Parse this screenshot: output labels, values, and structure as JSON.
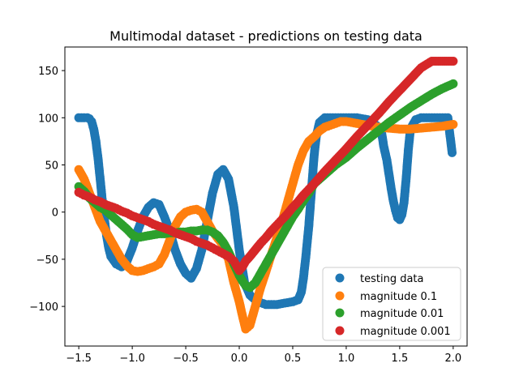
{
  "chart_data": {
    "type": "scatter",
    "title": "Multimodal dataset - predictions on testing data",
    "xlabel": "",
    "ylabel": "",
    "xlim": [
      -1.63,
      2.13
    ],
    "ylim": [
      -142,
      175
    ],
    "xticks": [
      -1.5,
      -1.0,
      -0.5,
      0.0,
      0.5,
      1.0,
      1.5,
      2.0
    ],
    "xtick_labels": [
      "−1.5",
      "−1.0",
      "−0.5",
      "0.0",
      "0.5",
      "1.0",
      "1.5",
      "2.0"
    ],
    "yticks": [
      -100,
      -50,
      0,
      50,
      100,
      150
    ],
    "ytick_labels": [
      "−100",
      "−50",
      "0",
      "50",
      "100",
      "150"
    ],
    "grid": false,
    "legend_position": "lower-right",
    "series": [
      {
        "name": "testing data",
        "color": "#1f77b4",
        "x": [
          -1.5,
          -1.45,
          -1.42,
          -1.4,
          -1.38,
          -1.36,
          -1.34,
          -1.32,
          -1.3,
          -1.28,
          -1.26,
          -1.24,
          -1.22,
          -1.2,
          -1.15,
          -1.1,
          -1.05,
          -1.0,
          -0.95,
          -0.9,
          -0.85,
          -0.8,
          -0.75,
          -0.7,
          -0.65,
          -0.6,
          -0.55,
          -0.5,
          -0.45,
          -0.4,
          -0.35,
          -0.3,
          -0.25,
          -0.2,
          -0.15,
          -0.1,
          -0.05,
          0.0,
          0.05,
          0.1,
          0.15,
          0.2,
          0.25,
          0.3,
          0.35,
          0.4,
          0.45,
          0.5,
          0.55,
          0.58,
          0.6,
          0.62,
          0.65,
          0.68,
          0.7,
          0.72,
          0.75,
          0.8,
          0.85,
          0.9,
          0.95,
          1.0,
          1.05,
          1.1,
          1.15,
          1.2,
          1.25,
          1.3,
          1.33,
          1.35,
          1.38,
          1.4,
          1.42,
          1.44,
          1.46,
          1.48,
          1.5,
          1.52,
          1.54,
          1.56,
          1.58,
          1.6,
          1.65,
          1.7,
          1.75,
          1.8,
          1.85,
          1.9,
          1.95,
          1.99
        ],
        "y": [
          100,
          100,
          100,
          99,
          96,
          88,
          75,
          57,
          35,
          12,
          -8,
          -25,
          -38,
          -47,
          -55,
          -58,
          -52,
          -38,
          -20,
          -5,
          5,
          10,
          8,
          -5,
          -20,
          -40,
          -55,
          -65,
          -70,
          -60,
          -40,
          -10,
          20,
          40,
          45,
          35,
          5,
          -40,
          -75,
          -88,
          -93,
          -96,
          -98,
          -98,
          -98,
          -97,
          -96,
          -95,
          -93,
          -85,
          -70,
          -50,
          -15,
          30,
          60,
          80,
          95,
          100,
          100,
          100,
          100,
          100,
          100,
          100,
          99,
          98,
          95,
          90,
          85,
          70,
          55,
          40,
          25,
          12,
          2,
          -6,
          -8,
          -3,
          10,
          35,
          65,
          88,
          98,
          100,
          100,
          100,
          100,
          100,
          100,
          63
        ]
      },
      {
        "name": "magnitude 0.1",
        "color": "#ff7f0e",
        "x": [
          -1.5,
          -1.45,
          -1.4,
          -1.35,
          -1.3,
          -1.25,
          -1.2,
          -1.15,
          -1.1,
          -1.05,
          -1.0,
          -0.95,
          -0.9,
          -0.85,
          -0.8,
          -0.75,
          -0.7,
          -0.65,
          -0.6,
          -0.55,
          -0.5,
          -0.45,
          -0.4,
          -0.35,
          -0.3,
          -0.25,
          -0.2,
          -0.15,
          -0.1,
          -0.05,
          0.0,
          0.03,
          0.06,
          0.1,
          0.15,
          0.2,
          0.25,
          0.3,
          0.35,
          0.4,
          0.45,
          0.5,
          0.55,
          0.6,
          0.65,
          0.7,
          0.75,
          0.8,
          0.85,
          0.9,
          0.95,
          1.0,
          1.05,
          1.1,
          1.15,
          1.2,
          1.3,
          1.4,
          1.5,
          1.6,
          1.7,
          1.8,
          1.9,
          2.0
        ],
        "y": [
          45,
          35,
          20,
          5,
          -10,
          -20,
          -30,
          -40,
          -50,
          -57,
          -62,
          -63,
          -62,
          -60,
          -58,
          -55,
          -45,
          -30,
          -15,
          -5,
          0,
          2,
          3,
          0,
          -10,
          -20,
          -28,
          -35,
          -50,
          -75,
          -95,
          -110,
          -124,
          -120,
          -100,
          -80,
          -63,
          -45,
          -28,
          -10,
          10,
          30,
          50,
          65,
          75,
          80,
          86,
          90,
          92,
          94,
          96,
          96,
          95,
          94,
          93,
          92,
          90,
          89,
          88,
          88,
          89,
          90,
          91,
          93
        ]
      },
      {
        "name": "magnitude 0.01",
        "color": "#2ca02c",
        "x": [
          -1.5,
          -1.45,
          -1.4,
          -1.35,
          -1.3,
          -1.25,
          -1.2,
          -1.15,
          -1.1,
          -1.05,
          -1.0,
          -0.95,
          -0.9,
          -0.85,
          -0.8,
          -0.75,
          -0.7,
          -0.65,
          -0.6,
          -0.55,
          -0.5,
          -0.45,
          -0.4,
          -0.35,
          -0.3,
          -0.25,
          -0.2,
          -0.15,
          -0.1,
          -0.05,
          0.0,
          0.03,
          0.06,
          0.1,
          0.15,
          0.2,
          0.25,
          0.3,
          0.35,
          0.4,
          0.45,
          0.5,
          0.55,
          0.6,
          0.65,
          0.7,
          0.8,
          0.9,
          1.0,
          1.1,
          1.2,
          1.3,
          1.4,
          1.5,
          1.6,
          1.7,
          1.8,
          1.9,
          2.0
        ],
        "y": [
          27,
          22,
          15,
          10,
          5,
          2,
          -3,
          -8,
          -13,
          -18,
          -24,
          -27,
          -26,
          -25,
          -24,
          -23,
          -23,
          -22,
          -22,
          -21,
          -21,
          -20,
          -20,
          -19,
          -19,
          -21,
          -25,
          -32,
          -42,
          -55,
          -67,
          -73,
          -78,
          -80,
          -75,
          -65,
          -55,
          -45,
          -35,
          -25,
          -15,
          -5,
          3,
          12,
          20,
          30,
          40,
          50,
          58,
          68,
          77,
          86,
          95,
          103,
          111,
          118,
          125,
          131,
          136
        ]
      },
      {
        "name": "magnitude 0.001",
        "color": "#d62728",
        "x": [
          -1.5,
          -1.45,
          -1.4,
          -1.35,
          -1.3,
          -1.25,
          -1.2,
          -1.15,
          -1.1,
          -1.05,
          -1.0,
          -0.95,
          -0.9,
          -0.85,
          -0.8,
          -0.75,
          -0.7,
          -0.65,
          -0.6,
          -0.55,
          -0.5,
          -0.45,
          -0.4,
          -0.35,
          -0.3,
          -0.25,
          -0.2,
          -0.15,
          -0.1,
          -0.05,
          0.0,
          0.03,
          0.06,
          0.1,
          0.15,
          0.2,
          0.25,
          0.3,
          0.35,
          0.4,
          0.45,
          0.5,
          0.55,
          0.6,
          0.65,
          0.7,
          0.8,
          0.9,
          1.0,
          1.1,
          1.2,
          1.3,
          1.4,
          1.5,
          1.6,
          1.7,
          1.8,
          1.9,
          2.0
        ],
        "y": [
          21,
          18,
          16,
          13,
          11,
          8,
          6,
          4,
          1,
          -1,
          -4,
          -6,
          -8,
          -10,
          -13,
          -15,
          -17,
          -19,
          -22,
          -24,
          -26,
          -28,
          -31,
          -33,
          -35,
          -38,
          -41,
          -44,
          -47,
          -52,
          -62,
          -58,
          -52,
          -47,
          -40,
          -33,
          -27,
          -20,
          -14,
          -8,
          -2,
          5,
          11,
          18,
          24,
          30,
          43,
          55,
          67,
          80,
          92,
          104,
          117,
          129,
          141,
          153,
          160,
          160,
          160
        ]
      }
    ]
  }
}
